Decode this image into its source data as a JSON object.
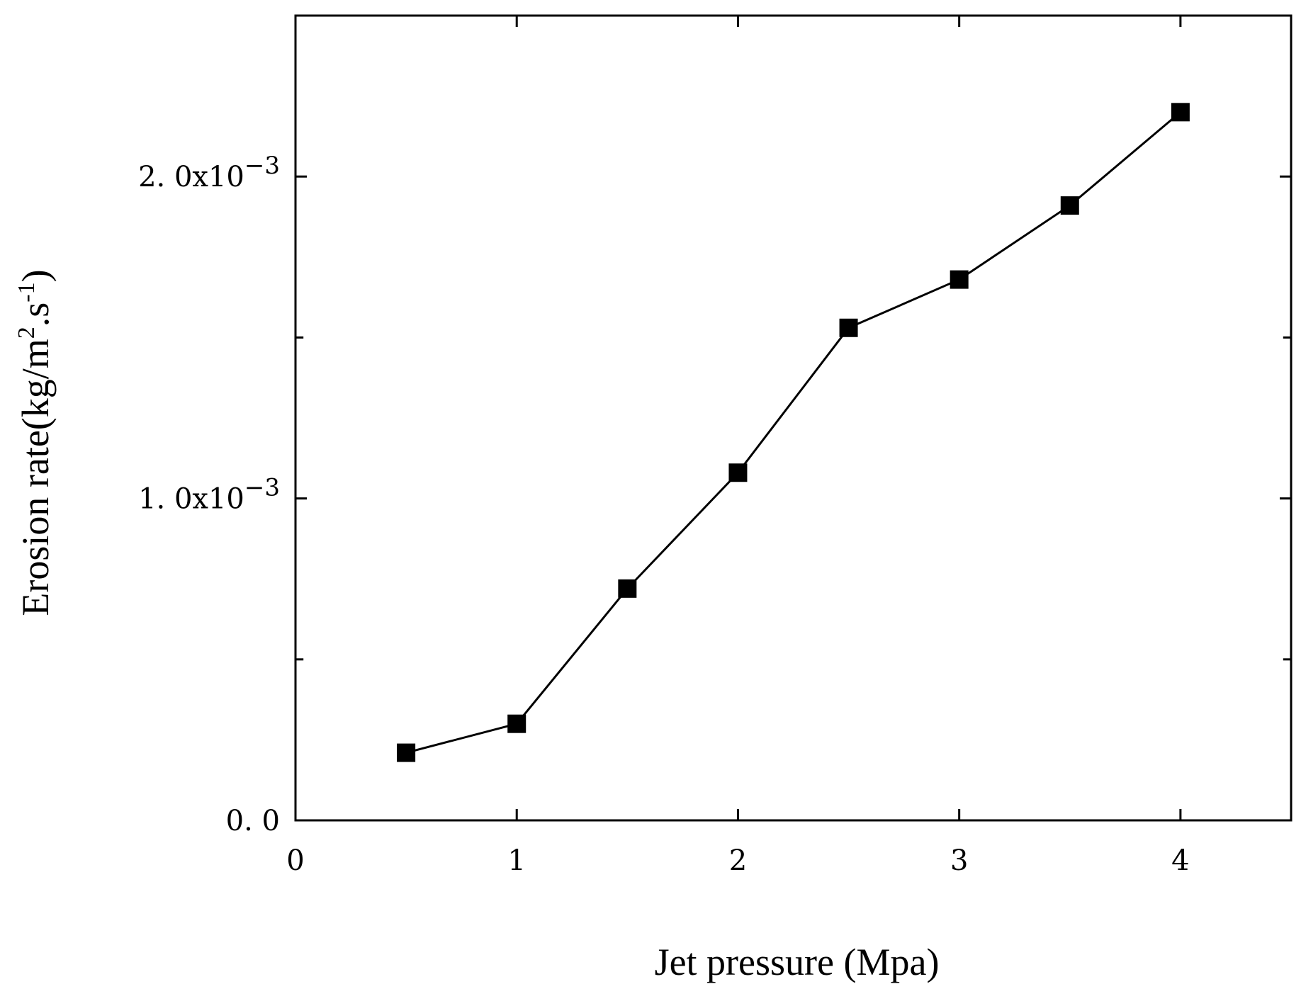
{
  "chart_data": {
    "type": "line",
    "title": "",
    "xlabel": "Jet pressure (Mpa)",
    "ylabel": {
      "prefix": "Erosion rate(kg/m",
      "sup1": "2",
      "mid": ".s",
      "sup2": "-1",
      "suffix": ")"
    },
    "xlim": [
      0,
      4.5
    ],
    "ylim": [
      0,
      0.0025
    ],
    "xticks": [
      0,
      1,
      2,
      3,
      4
    ],
    "xtick_labels": [
      "0",
      "1",
      "2",
      "3",
      "4"
    ],
    "yticks_major": [
      0,
      0.001,
      0.002
    ],
    "ytick_labels": [
      {
        "base": "0. 0",
        "exp": ""
      },
      {
        "base": "1. 0x10",
        "exp": "−3"
      },
      {
        "base": "2. 0x10",
        "exp": "−3"
      }
    ],
    "yticks_minor": [
      0.0005,
      0.0015
    ],
    "grid": false,
    "legend": "none",
    "marker": "square",
    "series": [
      {
        "name": "Erosion rate",
        "x": [
          0.5,
          1.0,
          1.5,
          2.0,
          2.5,
          3.0,
          3.5,
          4.0
        ],
        "y": [
          0.00021,
          0.0003,
          0.00072,
          0.00108,
          0.00153,
          0.00168,
          0.00191,
          0.0022
        ]
      }
    ]
  }
}
